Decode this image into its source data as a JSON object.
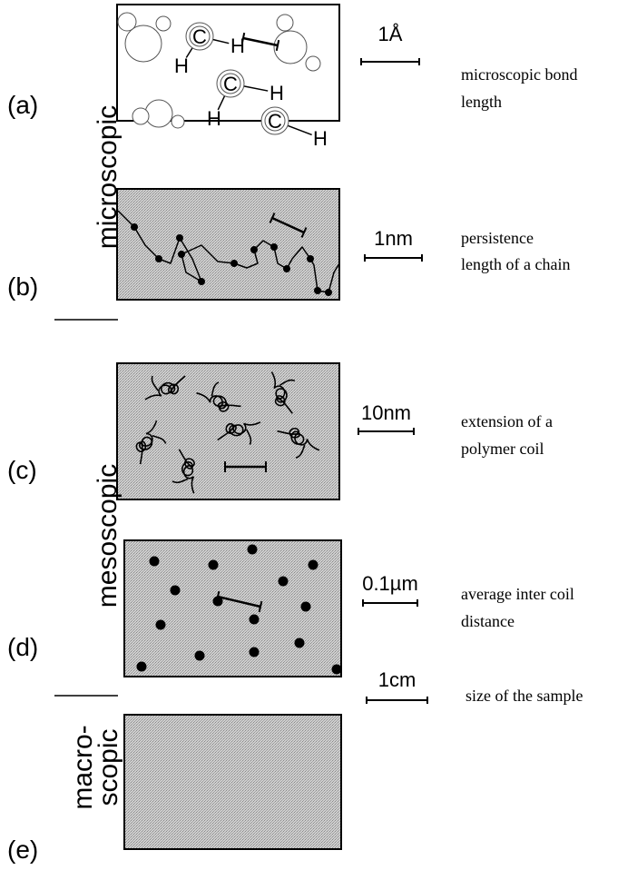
{
  "groups": [
    {
      "lines": [
        "microscopic"
      ]
    },
    {
      "lines": [
        "mesoscopic"
      ]
    },
    {
      "lines": [
        "macro-",
        "scopic"
      ]
    }
  ],
  "panels": [
    {
      "label": "(a)",
      "scale": "1Å",
      "description": [
        "microscopic bond",
        "length"
      ],
      "atoms": [
        "C",
        "H",
        "H",
        "C",
        "H",
        "H",
        "C",
        "H"
      ]
    },
    {
      "label": "(b)",
      "scale": "1nm",
      "description": [
        "persistence",
        "length of a chain"
      ]
    },
    {
      "label": "(c)",
      "scale": "10nm",
      "description": [
        "extension of a",
        "polymer coil"
      ]
    },
    {
      "label": "(d)",
      "scale": "0.1µm",
      "description": [
        "average inter coil",
        "distance"
      ]
    },
    {
      "label": "(e)",
      "scale": "1cm",
      "description": [
        "size of the sample"
      ]
    }
  ]
}
